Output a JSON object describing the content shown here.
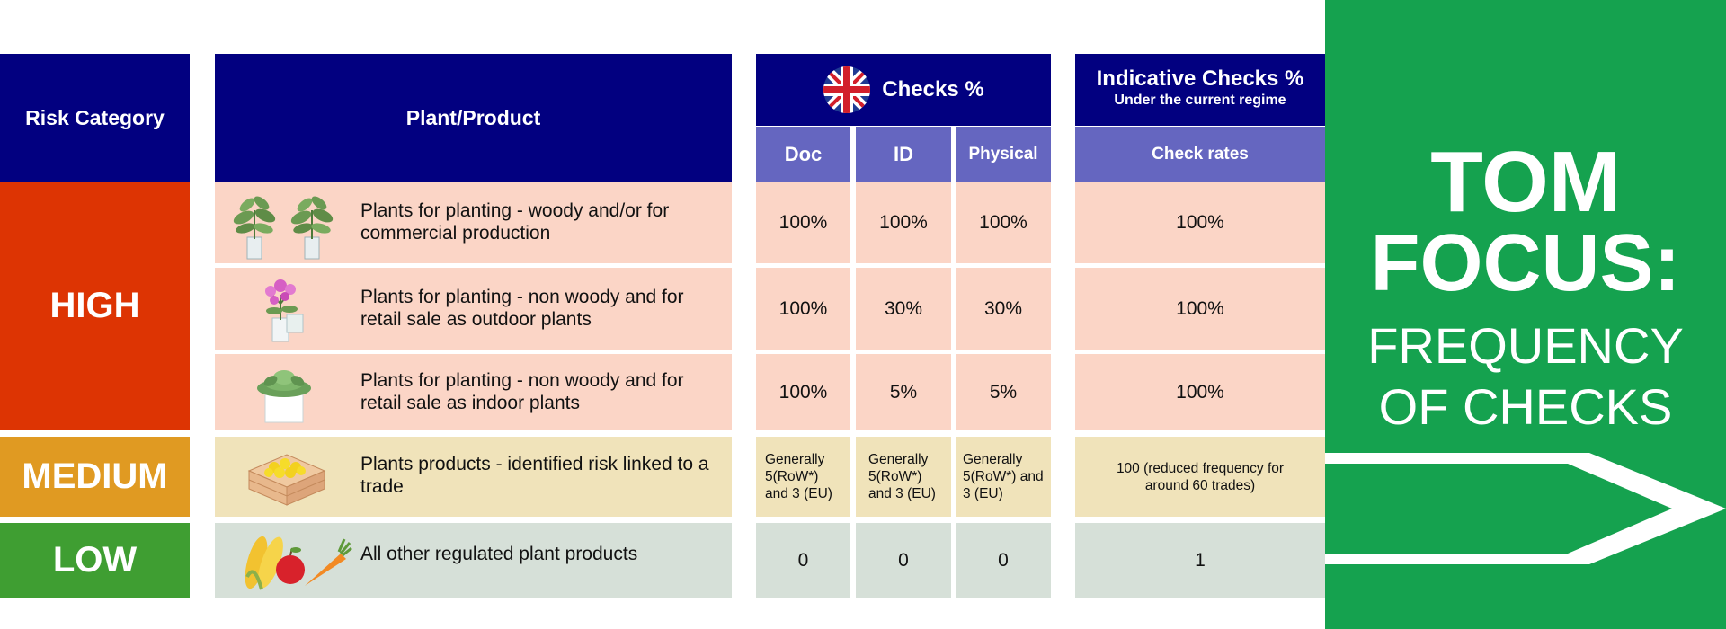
{
  "colors": {
    "navy": "#020080",
    "lavender": "#6566c0",
    "high": "#dd3403",
    "medium": "#e09a22",
    "low": "#3f9e32",
    "row_high": "#fbd5c6",
    "row_medium": "#f0e3ba",
    "row_low": "#d6e0d8",
    "panel_green": "#15a24f"
  },
  "headers": {
    "risk_category": "Risk Category",
    "plant_product": "Plant/Product",
    "uk_checks": "Checks %",
    "uk_flag_icon": "uk-flag-icon",
    "sub_doc": "Doc",
    "sub_id": "ID",
    "sub_physical": "Physical",
    "indicative_title": "Indicative Checks %",
    "indicative_subtitle": "Under the current regime",
    "check_rates": "Check rates"
  },
  "risk": {
    "high": "HIGH",
    "medium": "MEDIUM",
    "low": "LOW"
  },
  "rows": [
    {
      "product": "Plants for planting - woody and/or for commercial production",
      "doc": "100%",
      "id": "100%",
      "physical": "100%",
      "rate": "100%",
      "icon": "potted-plants-icon"
    },
    {
      "product": "Plants for planting - non woody and for retail sale as outdoor plants",
      "doc": "100%",
      "id": "30%",
      "physical": "30%",
      "rate": "100%",
      "icon": "flowering-plant-icon"
    },
    {
      "product": "Plants for planting - non woody and for retail sale as indoor plants",
      "doc": "100%",
      "id": "5%",
      "physical": "5%",
      "rate": "100%",
      "icon": "succulent-icon"
    },
    {
      "product": "Plants products - identified risk linked to a trade",
      "doc": "Generally 5(RoW*) and 3 (EU)",
      "id": "Generally 5(RoW*) and 3 (EU)",
      "physical": "Generally 5(RoW*) and 3 (EU)",
      "rate": "100 (reduced frequency for around 60 trades)",
      "icon": "fruit-crate-icon"
    },
    {
      "product": "All other regulated plant products",
      "doc": "0",
      "id": "0",
      "physical": "0",
      "rate": "1",
      "icon": "produce-icon"
    }
  ],
  "panel": {
    "line1": "TOM",
    "line2": "FOCUS:",
    "line3": "FREQUENCY",
    "line4": "OF CHECKS",
    "arrow_icon": "chevron-arrow-icon"
  }
}
